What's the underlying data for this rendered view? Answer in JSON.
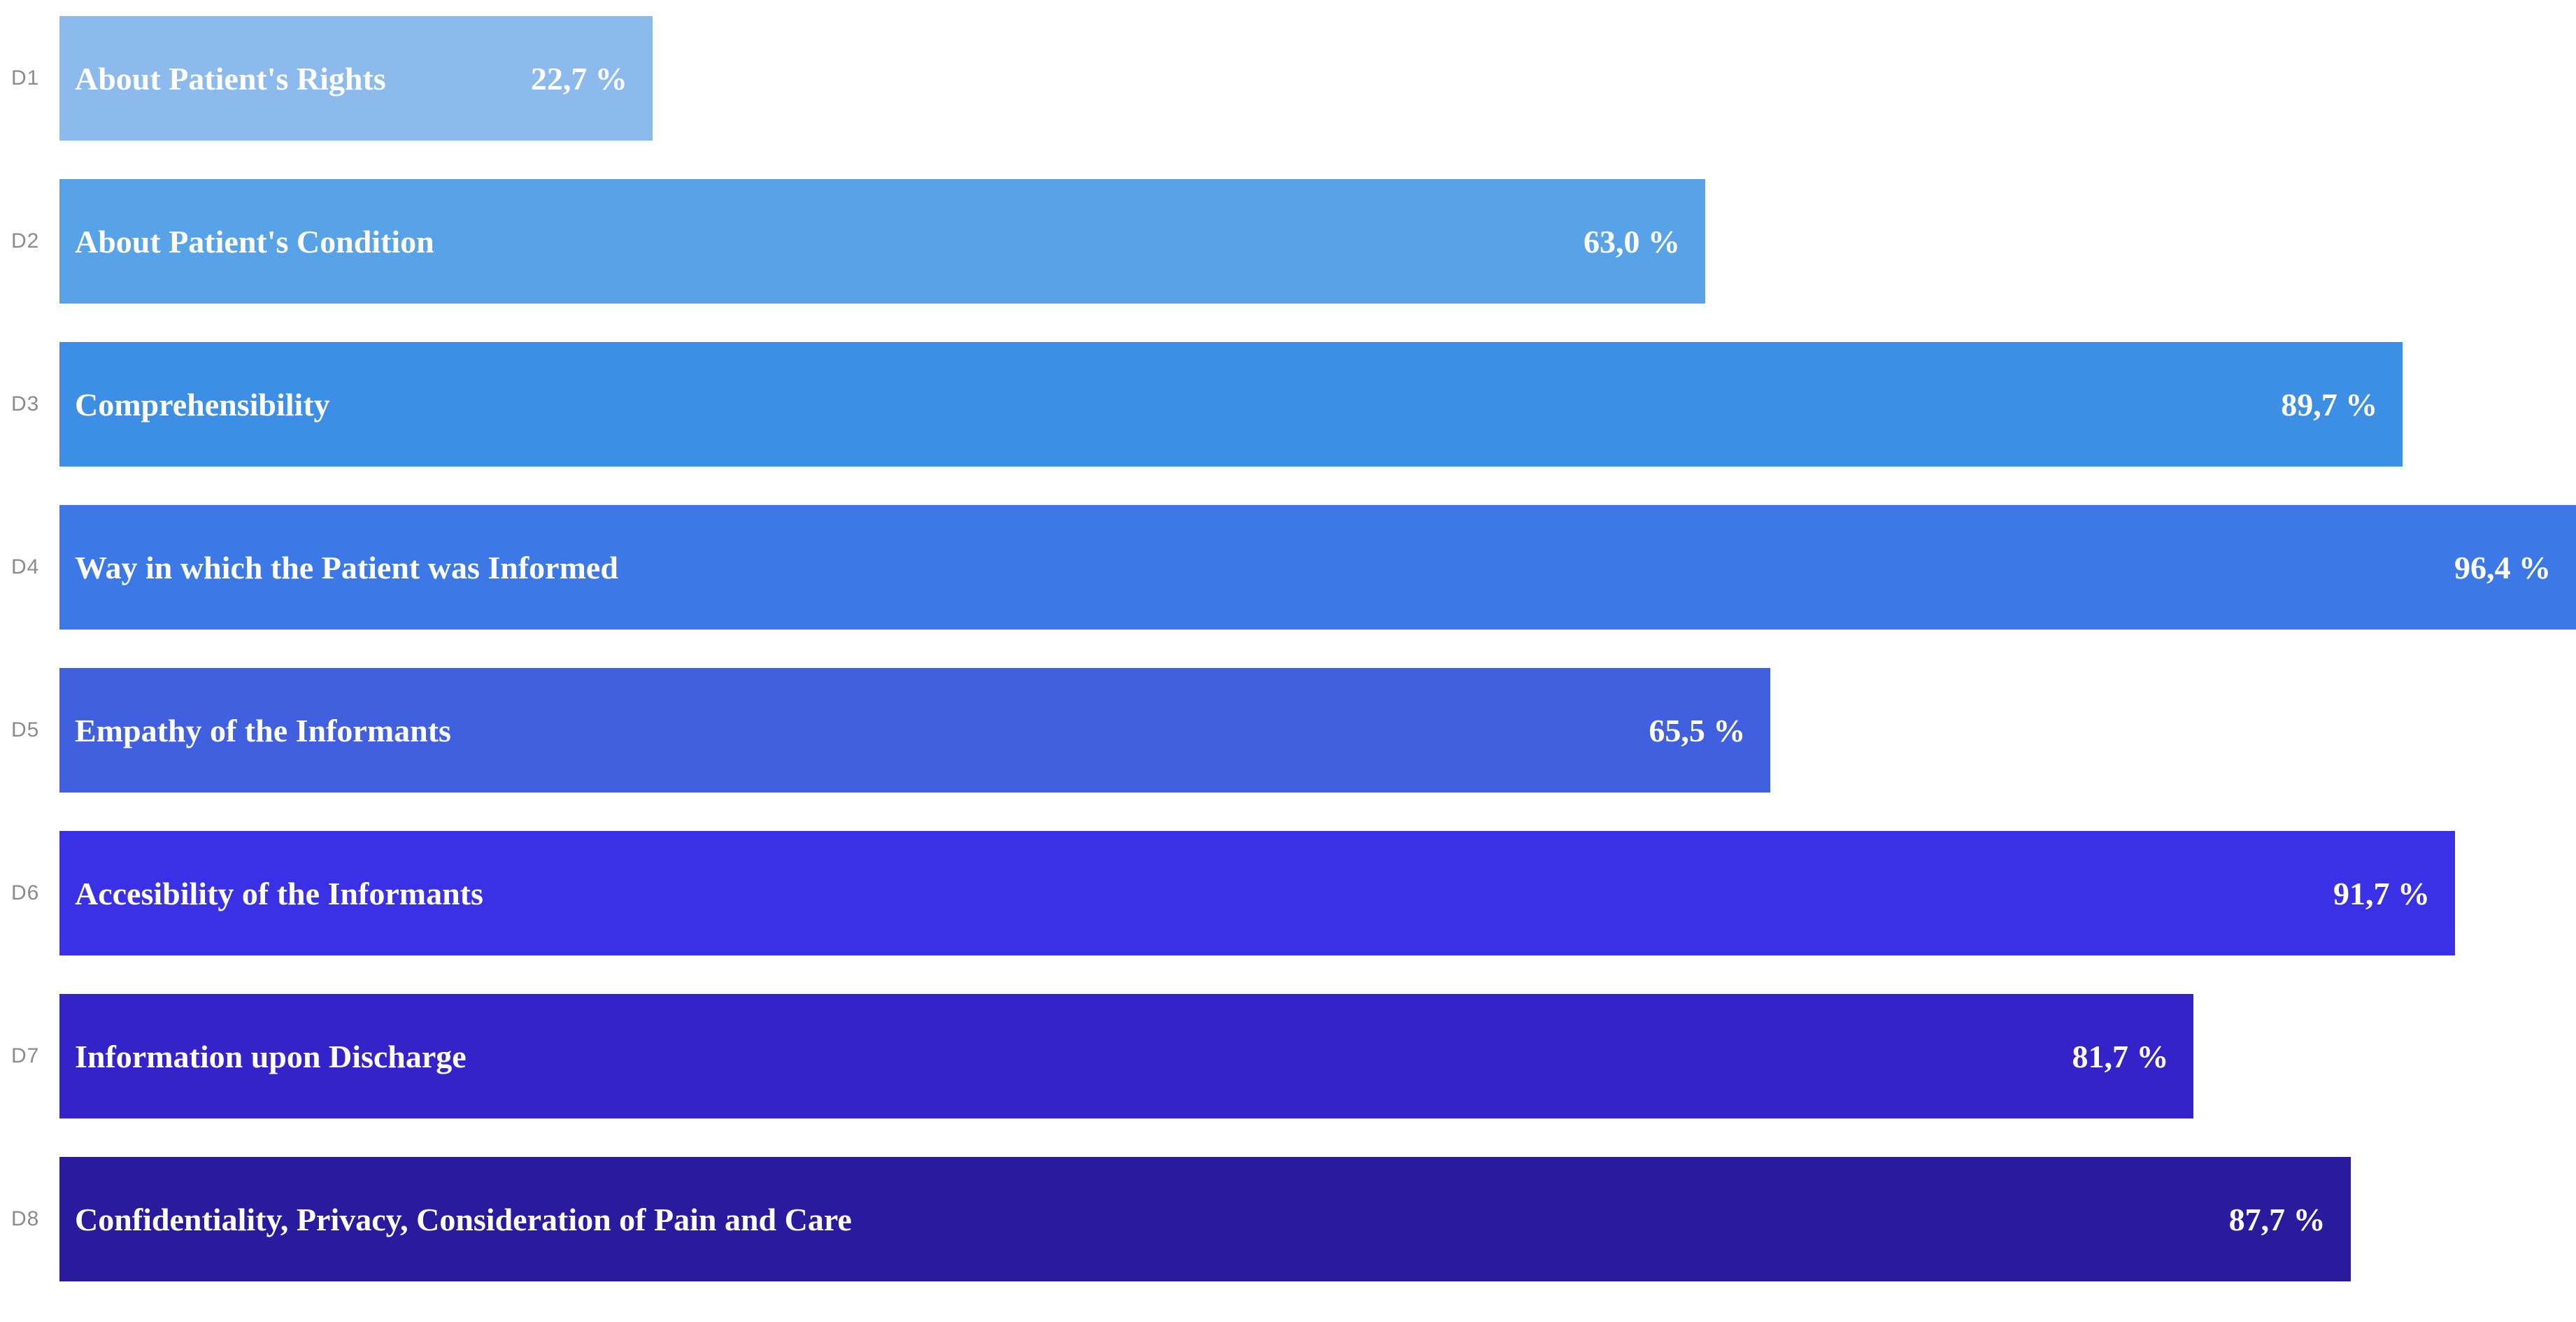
{
  "page": {
    "background": "#ffffff"
  },
  "chart_data": {
    "type": "bar",
    "orientation": "horizontal",
    "title": "",
    "xlabel": "",
    "ylabel": "",
    "xlim": [
      0,
      100
    ],
    "grid": false,
    "legend": false,
    "categories": [
      "D1",
      "D2",
      "D3",
      "D4",
      "D5",
      "D6",
      "D7",
      "D8"
    ],
    "labels": [
      "About Patient's Rights",
      "About Patient's Condition",
      "Comprehensibility",
      "Way in which the Patient was Informed",
      "Empathy of the Informants",
      "Accesibility of the Informants",
      "Information upon Discharge",
      "Confidentiality, Privacy, Consideration of Pain and Care"
    ],
    "values": [
      22.7,
      63.0,
      89.7,
      96.4,
      65.5,
      91.7,
      81.7,
      87.7
    ],
    "value_labels": [
      "22,7 %",
      "63,0 %",
      "89,7 %",
      "96,4 %",
      "65,5 %",
      "91,7 %",
      "81,7 %",
      "87,7 %"
    ],
    "bar_colors": [
      "#8cbaec",
      "#58a3e8",
      "#3c8fe4",
      "#3c79e6",
      "#4160e0",
      "#3a31e6",
      "#3423c8",
      "#2a1b9e"
    ],
    "bar_text_color": "#ffffff",
    "category_label_color": "#8b8b8b"
  }
}
